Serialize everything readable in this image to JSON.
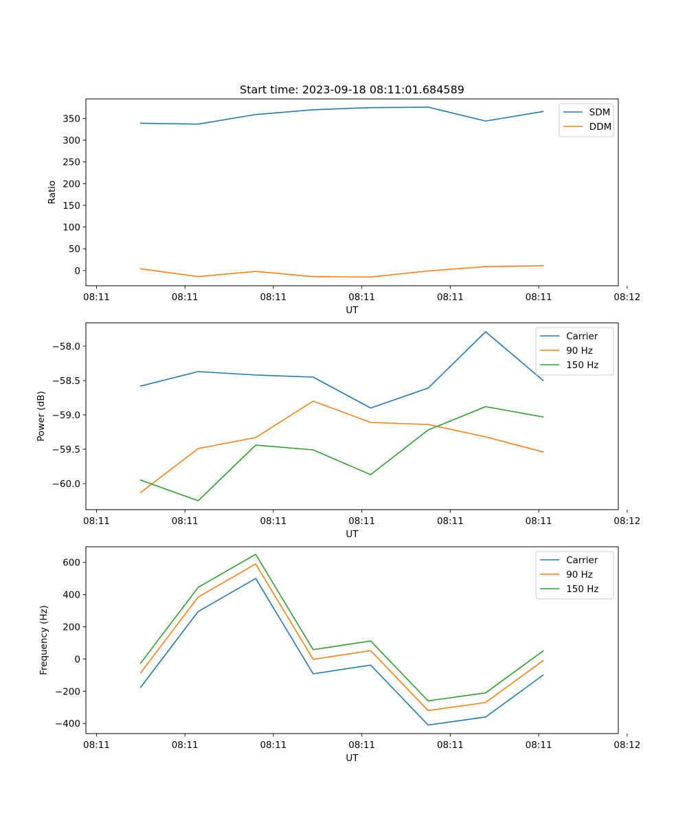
{
  "figure_title": "Start time: 2023-09-18 08:11:01.684589",
  "colors": {
    "blue": "#1f77b4",
    "orange": "#ff7f0e",
    "green": "#2ca02c"
  },
  "chart_data": [
    {
      "type": "line",
      "title": "Start time: 2023-09-18 08:11:01.684589",
      "xlabel": "UT",
      "ylabel": "Ratio",
      "grid": false,
      "legend_position": "top-right",
      "x": [
        0.5,
        1.15,
        1.8,
        2.45,
        3.1,
        3.75,
        4.4,
        5.05
      ],
      "xlim": [
        -0.12,
        5.9
      ],
      "x_ticks": [
        0,
        1,
        2,
        3,
        4,
        5,
        6
      ],
      "x_tick_labels": [
        "08:11",
        "08:11",
        "08:11",
        "08:11",
        "08:11",
        "08:11",
        "08:12"
      ],
      "ylim": [
        -35,
        395
      ],
      "y_ticks": [
        0,
        50,
        100,
        150,
        200,
        250,
        300,
        350
      ],
      "y_tick_labels": [
        "0",
        "50",
        "100",
        "150",
        "200",
        "250",
        "300",
        "350"
      ],
      "series": [
        {
          "name": "SDM",
          "color": "#1f77b4",
          "values": [
            339,
            337,
            359,
            370,
            375,
            376,
            344,
            366
          ]
        },
        {
          "name": "DDM",
          "color": "#ff7f0e",
          "values": [
            4,
            -14,
            -2,
            -14,
            -15,
            -1,
            9,
            11
          ]
        }
      ]
    },
    {
      "type": "line",
      "title": "",
      "xlabel": "UT",
      "ylabel": "Power (dB)",
      "grid": false,
      "legend_position": "top-right",
      "x": [
        0.5,
        1.15,
        1.8,
        2.45,
        3.1,
        3.75,
        4.4,
        5.05
      ],
      "xlim": [
        -0.12,
        5.9
      ],
      "x_ticks": [
        0,
        1,
        2,
        3,
        4,
        5,
        6
      ],
      "x_tick_labels": [
        "08:11",
        "08:11",
        "08:11",
        "08:11",
        "08:11",
        "08:11",
        "08:12"
      ],
      "ylim": [
        -60.38,
        -57.66
      ],
      "y_ticks": [
        -60.0,
        -59.5,
        -59.0,
        -58.5,
        -58.0
      ],
      "y_tick_labels": [
        "−60.0",
        "−59.5",
        "−59.0",
        "−58.5",
        "−58.0"
      ],
      "series": [
        {
          "name": "Carrier",
          "color": "#1f77b4",
          "values": [
            -58.58,
            -58.37,
            -58.42,
            -58.45,
            -58.9,
            -58.61,
            -57.79,
            -58.5
          ]
        },
        {
          "name": "90 Hz",
          "color": "#ff7f0e",
          "values": [
            -60.13,
            -59.49,
            -59.33,
            -58.8,
            -59.11,
            -59.14,
            -59.32,
            -59.54
          ]
        },
        {
          "name": "150 Hz",
          "color": "#2ca02c",
          "values": [
            -59.95,
            -60.25,
            -59.44,
            -59.51,
            -59.87,
            -59.22,
            -58.88,
            -59.03
          ]
        }
      ]
    },
    {
      "type": "line",
      "title": "",
      "xlabel": "UT",
      "ylabel": "Frequency (Hz)",
      "grid": false,
      "legend_position": "top-right",
      "x": [
        0.5,
        1.15,
        1.8,
        2.45,
        3.1,
        3.75,
        4.4,
        5.05
      ],
      "xlim": [
        -0.12,
        5.9
      ],
      "x_ticks": [
        0,
        1,
        2,
        3,
        4,
        5,
        6
      ],
      "x_tick_labels": [
        "08:11",
        "08:11",
        "08:11",
        "08:11",
        "08:11",
        "08:11",
        "08:12"
      ],
      "ylim": [
        -463,
        697
      ],
      "y_ticks": [
        -400,
        -200,
        0,
        200,
        400,
        600
      ],
      "y_tick_labels": [
        "−400",
        "−200",
        "0",
        "200",
        "400",
        "600"
      ],
      "series": [
        {
          "name": "Carrier",
          "color": "#1f77b4",
          "values": [
            -175,
            295,
            500,
            -92,
            -38,
            -410,
            -360,
            -100
          ]
        },
        {
          "name": "90 Hz",
          "color": "#ff7f0e",
          "values": [
            -85,
            385,
            590,
            -2,
            52,
            -320,
            -270,
            -10
          ]
        },
        {
          "name": "150 Hz",
          "color": "#2ca02c",
          "values": [
            -25,
            445,
            650,
            58,
            112,
            -260,
            -210,
            50
          ]
        }
      ]
    }
  ]
}
